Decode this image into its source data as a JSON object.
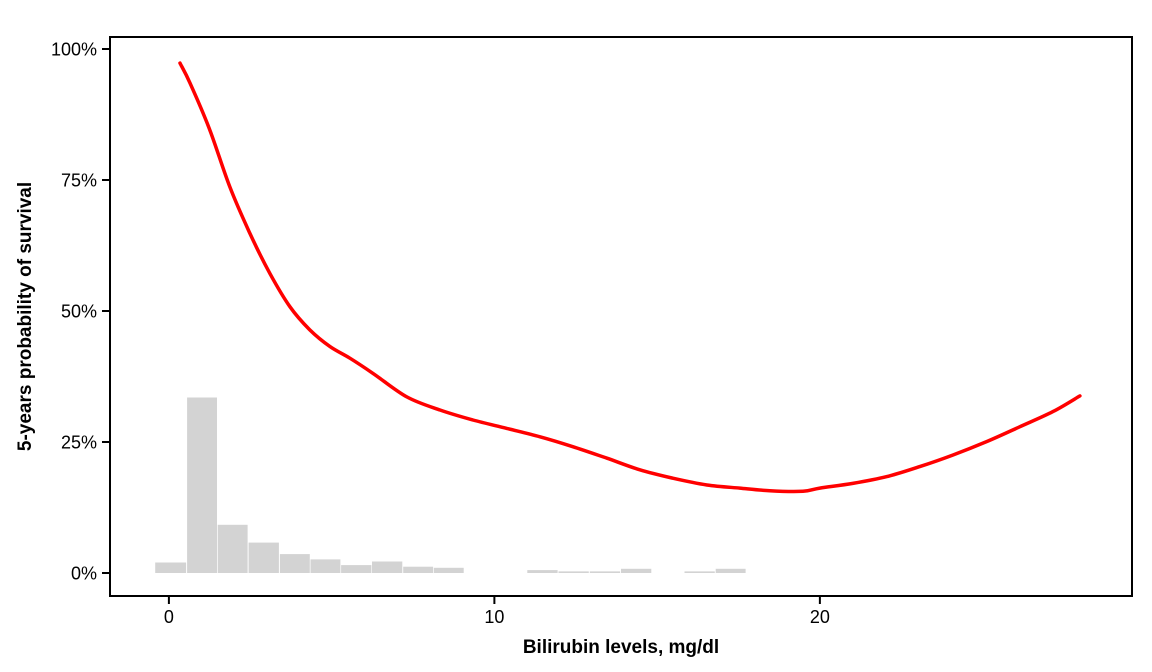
{
  "chart_data": {
    "type": "line",
    "subtype": "smooth-curve-with-marginal-histogram",
    "title": "",
    "xlabel": "Bilirubin levels, mg/dl",
    "ylabel": "5-years probability of survival",
    "grid": false,
    "legend": "none",
    "panel_border": true,
    "background_color": "#FFFFFF",
    "axis_color": "#000000",
    "x_axis": {
      "range": [
        -1.84,
        29.62
      ],
      "ticks": [
        {
          "v": 0,
          "label": "0"
        },
        {
          "v": 10,
          "label": "10"
        },
        {
          "v": 20,
          "label": "20"
        }
      ]
    },
    "y_axis": {
      "range": [
        -4.58,
        102.48
      ],
      "unit": "percent",
      "ticks": [
        {
          "v": 0,
          "label": "0%"
        },
        {
          "v": 25,
          "label": "25%"
        },
        {
          "v": 50,
          "label": "50%"
        },
        {
          "v": 75,
          "label": "75%"
        },
        {
          "v": 100,
          "label": "100%"
        }
      ]
    },
    "series": [
      {
        "name": "survival-probability-curve",
        "type": "line",
        "color": "#FF0000",
        "stroke_width": 3.5,
        "points": [
          [
            0.34,
            97.3
          ],
          [
            0.65,
            93.5
          ],
          [
            1.26,
            84.5
          ],
          [
            1.87,
            73.7
          ],
          [
            2.49,
            64.8
          ],
          [
            3.1,
            57.2
          ],
          [
            3.72,
            50.8
          ],
          [
            4.33,
            46.4
          ],
          [
            4.95,
            43.2
          ],
          [
            5.56,
            41.0
          ],
          [
            6.27,
            38.1
          ],
          [
            7.31,
            33.6
          ],
          [
            8.33,
            31.1
          ],
          [
            9.34,
            29.2
          ],
          [
            10.38,
            27.6
          ],
          [
            11.4,
            26.0
          ],
          [
            12.41,
            24.1
          ],
          [
            13.46,
            21.9
          ],
          [
            14.47,
            19.7
          ],
          [
            15.48,
            18.1
          ],
          [
            16.53,
            16.8
          ],
          [
            17.54,
            16.2
          ],
          [
            18.46,
            15.7
          ],
          [
            19.48,
            15.6
          ],
          [
            20.0,
            16.2
          ],
          [
            21.01,
            17.1
          ],
          [
            22.06,
            18.4
          ],
          [
            23.07,
            20.3
          ],
          [
            24.08,
            22.5
          ],
          [
            25.13,
            25.1
          ],
          [
            26.14,
            27.9
          ],
          [
            27.16,
            30.8
          ],
          [
            27.99,
            33.8
          ]
        ]
      },
      {
        "name": "bilirubin-distribution-histogram",
        "type": "bar",
        "color": "#D3D3D3",
        "baseline": 0,
        "bars": [
          {
            "x0": -0.42,
            "x1": 0.53,
            "h": 2.0
          },
          {
            "x0": 0.56,
            "x1": 1.48,
            "h": 33.5
          },
          {
            "x0": 1.5,
            "x1": 2.42,
            "h": 9.2
          },
          {
            "x0": 2.45,
            "x1": 3.38,
            "h": 5.8
          },
          {
            "x0": 3.41,
            "x1": 4.33,
            "h": 3.6
          },
          {
            "x0": 4.35,
            "x1": 5.27,
            "h": 2.6
          },
          {
            "x0": 5.29,
            "x1": 6.22,
            "h": 1.5
          },
          {
            "x0": 6.24,
            "x1": 7.17,
            "h": 2.2
          },
          {
            "x0": 7.2,
            "x1": 8.12,
            "h": 1.2
          },
          {
            "x0": 8.14,
            "x1": 9.06,
            "h": 1.0
          },
          {
            "x0": 11.01,
            "x1": 11.94,
            "h": 0.55
          },
          {
            "x0": 11.97,
            "x1": 12.9,
            "h": 0.3
          },
          {
            "x0": 12.93,
            "x1": 13.86,
            "h": 0.3
          },
          {
            "x0": 13.89,
            "x1": 14.82,
            "h": 0.8
          },
          {
            "x0": 15.84,
            "x1": 16.77,
            "h": 0.3
          },
          {
            "x0": 16.8,
            "x1": 17.72,
            "h": 0.8
          }
        ]
      }
    ]
  }
}
